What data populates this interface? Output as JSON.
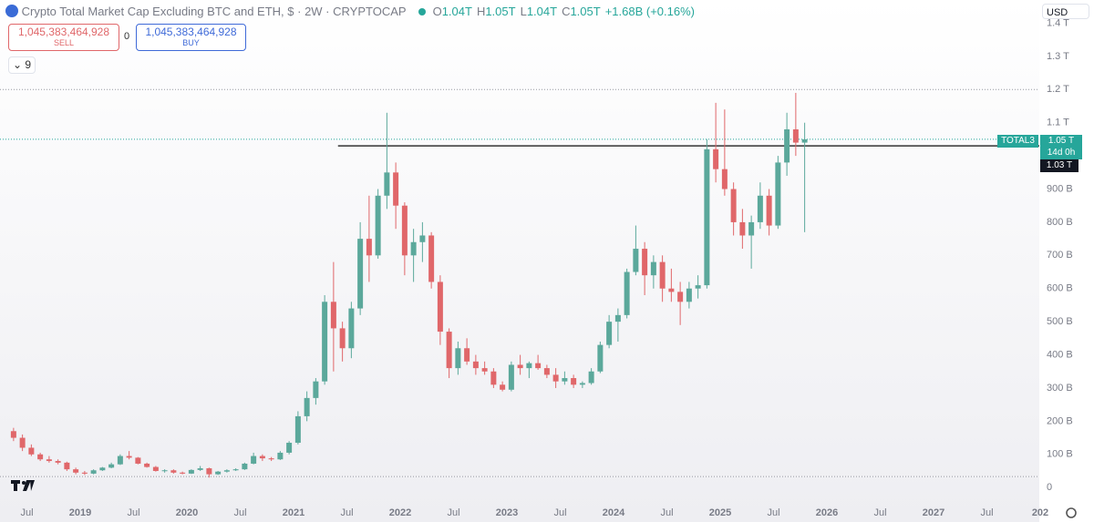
{
  "header": {
    "title": "Crypto Total Market Cap Excluding BTC and ETH, $ · 2W · CRYPTOCAP",
    "ohlc": [
      {
        "key": "O",
        "value": "1.04T"
      },
      {
        "key": "H",
        "value": "1.05T"
      },
      {
        "key": "L",
        "value": "1.04T"
      },
      {
        "key": "C",
        "value": "1.05T"
      }
    ],
    "change": "+1.68B (+0.16%)"
  },
  "trade": {
    "sell_price": "1,045,383,464,928",
    "sell": "SELL",
    "spread": "0",
    "buy_price": "1,045,383,464,928",
    "buy": "BUY"
  },
  "indicator_toggle": "9",
  "currency": "USD",
  "price_tags": {
    "symbol": "TOTAL3",
    "last_price": "1.05 T",
    "countdown": "14d 0h",
    "line_price": "1.03 T"
  },
  "chart_data": {
    "type": "candlestick",
    "up_color": "#5ba89b",
    "down_color": "#e0676a",
    "x": [
      "2018-05",
      "2018-06",
      "2018-07",
      "2018-08",
      "2018-09",
      "2018-10",
      "2018-11",
      "2018-12",
      "2019-01",
      "2019-02",
      "2019-03",
      "2019-04",
      "2019-05",
      "2019-06",
      "2019-07",
      "2019-08",
      "2019-09",
      "2019-10",
      "2019-11",
      "2019-12",
      "2020-01",
      "2020-02",
      "2020-03",
      "2020-04",
      "2020-05",
      "2020-06",
      "2020-07",
      "2020-08",
      "2020-09",
      "2020-10",
      "2020-11",
      "2020-12",
      "2021-01",
      "2021-02",
      "2021-03",
      "2021-04",
      "2021-05",
      "2021-06",
      "2021-07",
      "2021-08",
      "2021-09",
      "2021-10",
      "2021-11",
      "2021-12",
      "2022-01",
      "2022-02",
      "2022-03",
      "2022-04",
      "2022-05",
      "2022-06",
      "2022-07",
      "2022-08",
      "2022-09",
      "2022-10",
      "2022-11",
      "2022-12",
      "2023-01",
      "2023-02",
      "2023-03",
      "2023-04",
      "2023-05",
      "2023-06",
      "2023-07",
      "2023-08",
      "2023-09",
      "2023-10",
      "2023-11",
      "2023-12",
      "2024-01",
      "2024-02",
      "2024-03",
      "2024-04",
      "2024-05",
      "2024-06",
      "2024-07",
      "2024-08",
      "2024-09",
      "2024-10",
      "2024-11",
      "2024-12",
      "2025-01",
      "2025-02",
      "2025-03",
      "2025-04",
      "2025-05",
      "2025-06",
      "2025-07",
      "2025-08",
      "2025-09",
      "2025-10"
    ],
    "open": [
      170,
      150,
      120,
      100,
      85,
      80,
      75,
      55,
      45,
      42,
      52,
      60,
      70,
      95,
      90,
      72,
      62,
      50,
      52,
      45,
      42,
      53,
      58,
      40,
      48,
      52,
      55,
      72,
      95,
      88,
      85,
      105,
      135,
      215,
      270,
      320,
      560,
      480,
      420,
      540,
      750,
      700,
      880,
      950,
      850,
      700,
      740,
      760,
      620,
      470,
      360,
      420,
      380,
      360,
      350,
      310,
      295,
      370,
      360,
      375,
      360,
      340,
      320,
      330,
      310,
      315,
      350,
      430,
      500,
      520,
      650,
      720,
      640,
      680,
      600,
      590,
      560,
      600,
      610,
      1020,
      960,
      900,
      800,
      760,
      800,
      880,
      790,
      980,
      1080,
      1040
    ],
    "high": [
      180,
      160,
      130,
      105,
      95,
      85,
      78,
      60,
      50,
      55,
      62,
      75,
      100,
      110,
      92,
      75,
      65,
      55,
      55,
      48,
      55,
      65,
      60,
      50,
      55,
      58,
      75,
      105,
      100,
      92,
      110,
      140,
      230,
      290,
      330,
      580,
      680,
      500,
      560,
      800,
      880,
      900,
      1130,
      980,
      860,
      780,
      800,
      770,
      640,
      480,
      440,
      450,
      400,
      380,
      360,
      320,
      380,
      400,
      380,
      400,
      370,
      360,
      350,
      340,
      320,
      360,
      440,
      520,
      540,
      660,
      790,
      740,
      700,
      700,
      660,
      620,
      620,
      640,
      1050,
      1160,
      1140,
      920,
      840,
      820,
      920,
      900,
      1000,
      1130,
      1190,
      1100
    ],
    "low": [
      140,
      110,
      95,
      80,
      75,
      70,
      50,
      40,
      38,
      40,
      50,
      58,
      68,
      85,
      70,
      60,
      48,
      45,
      42,
      40,
      41,
      50,
      30,
      38,
      45,
      50,
      53,
      70,
      80,
      80,
      83,
      100,
      130,
      200,
      250,
      310,
      350,
      380,
      390,
      520,
      620,
      690,
      840,
      780,
      640,
      620,
      680,
      600,
      430,
      330,
      340,
      370,
      340,
      340,
      300,
      290,
      290,
      340,
      330,
      355,
      330,
      300,
      310,
      300,
      300,
      310,
      345,
      420,
      440,
      510,
      640,
      580,
      600,
      560,
      560,
      490,
      540,
      570,
      600,
      920,
      880,
      760,
      720,
      660,
      780,
      760,
      780,
      940,
      1000,
      770
    ],
    "close": [
      150,
      120,
      100,
      85,
      80,
      75,
      55,
      45,
      42,
      52,
      60,
      70,
      95,
      90,
      72,
      62,
      50,
      52,
      45,
      42,
      53,
      58,
      40,
      48,
      52,
      55,
      72,
      95,
      88,
      85,
      105,
      135,
      215,
      270,
      320,
      560,
      480,
      420,
      540,
      750,
      700,
      880,
      950,
      850,
      700,
      740,
      760,
      620,
      470,
      360,
      420,
      380,
      360,
      350,
      310,
      295,
      370,
      360,
      375,
      360,
      340,
      320,
      330,
      310,
      315,
      350,
      430,
      500,
      520,
      650,
      720,
      640,
      680,
      600,
      590,
      560,
      600,
      610,
      1020,
      960,
      900,
      800,
      760,
      800,
      880,
      790,
      980,
      1080,
      1040,
      1050
    ],
    "ylim": [
      -27,
      1470
    ],
    "yticks": [
      {
        "value": 0,
        "label": "0"
      },
      {
        "value": 100,
        "label": "100 B"
      },
      {
        "value": 200,
        "label": "200 B"
      },
      {
        "value": 300,
        "label": "300 B"
      },
      {
        "value": 400,
        "label": "400 B"
      },
      {
        "value": 500,
        "label": "500 B"
      },
      {
        "value": 600,
        "label": "600 B"
      },
      {
        "value": 700,
        "label": "700 B"
      },
      {
        "value": 800,
        "label": "800 B"
      },
      {
        "value": 900,
        "label": "900 B"
      },
      {
        "value": 1100,
        "label": "1.1 T"
      },
      {
        "value": 1200,
        "label": "1.2 T"
      },
      {
        "value": 1300,
        "label": "1.3 T"
      },
      {
        "value": 1400,
        "label": "1.4 T"
      }
    ],
    "xticks": [
      {
        "value": "2018-07",
        "label": "Jul"
      },
      {
        "value": "2019-01",
        "label": "2019"
      },
      {
        "value": "2019-07",
        "label": "Jul"
      },
      {
        "value": "2020-01",
        "label": "2020"
      },
      {
        "value": "2020-07",
        "label": "Jul"
      },
      {
        "value": "2021-01",
        "label": "2021"
      },
      {
        "value": "2021-07",
        "label": "Jul"
      },
      {
        "value": "2022-01",
        "label": "2022"
      },
      {
        "value": "2022-07",
        "label": "Jul"
      },
      {
        "value": "2023-01",
        "label": "2023"
      },
      {
        "value": "2023-07",
        "label": "Jul"
      },
      {
        "value": "2024-01",
        "label": "2024"
      },
      {
        "value": "2024-07",
        "label": "Jul"
      },
      {
        "value": "2025-01",
        "label": "2025"
      },
      {
        "value": "2025-07",
        "label": "Jul"
      },
      {
        "value": "2026-01",
        "label": "2026"
      },
      {
        "value": "2026-07",
        "label": "Jul"
      },
      {
        "value": "2027-01",
        "label": "2027"
      },
      {
        "value": "2027-07",
        "label": "Jul"
      },
      {
        "value": "2028-01",
        "label": "202"
      }
    ],
    "hlines": [
      {
        "value": 1200,
        "style": "dotted",
        "color": "#9598a1",
        "from": "2018-03"
      },
      {
        "value": 1050,
        "style": "dotted",
        "color": "#26a69a",
        "from": "2018-03"
      },
      {
        "value": 33,
        "style": "dotted",
        "color": "#9598a1",
        "from": "2018-03"
      },
      {
        "value": 1030,
        "style": "solid",
        "color": "#333333",
        "from": "2021-06"
      }
    ]
  }
}
